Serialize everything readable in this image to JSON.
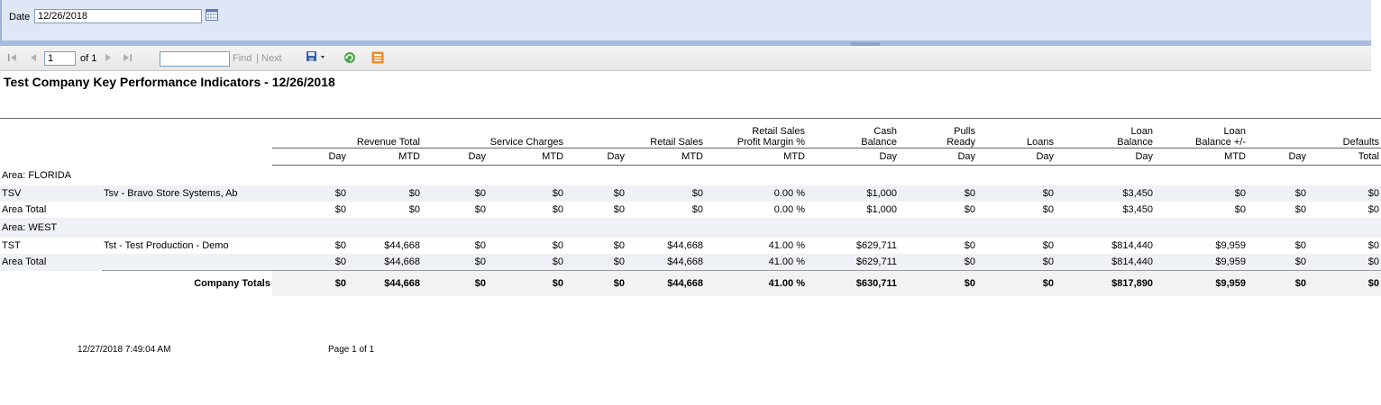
{
  "params": {
    "date_label": "Date",
    "date_value": "12/26/2018"
  },
  "toolbar": {
    "page_value": "1",
    "of_text": "of 1",
    "find_label": "Find",
    "separator": "|",
    "next_label": "Next"
  },
  "report": {
    "title": "Test Company Key Performance Indicators - 12/26/2018",
    "group_headers": [
      "Revenue Total",
      "Service Charges",
      "Retail Sales",
      "Retail Sales",
      "Profit Margin %",
      "Cash",
      "Balance",
      "Pulls",
      "Ready",
      "Loans",
      "Loan",
      "Balance",
      "Loan",
      "Balance +/-",
      "Defaults"
    ],
    "sub_headers": [
      "Day",
      "MTD",
      "Day",
      "MTD",
      "Day",
      "MTD",
      "MTD",
      "Day",
      "Day",
      "Day",
      "Day",
      "MTD",
      "Day",
      "Total"
    ],
    "areas": [
      {
        "area_label": "Area: FLORIDA",
        "store": {
          "code": "TSV",
          "name": "Tsv - Bravo Store Systems, Ab",
          "values": [
            "$0",
            "$0",
            "$0",
            "$0",
            "$0",
            "$0",
            "0.00 %",
            "$1,000",
            "$0",
            "$0",
            "$3,450",
            "$0",
            "$0",
            "$0"
          ]
        },
        "total": {
          "label": "Area Total",
          "values": [
            "$0",
            "$0",
            "$0",
            "$0",
            "$0",
            "$0",
            "0.00 %",
            "$1,000",
            "$0",
            "$0",
            "$3,450",
            "$0",
            "$0",
            "$0"
          ]
        }
      },
      {
        "area_label": "Area: WEST",
        "store": {
          "code": "TST",
          "name": "Tst - Test Production - Demo",
          "values": [
            "$0",
            "$44,668",
            "$0",
            "$0",
            "$0",
            "$44,668",
            "41.00 %",
            "$629,711",
            "$0",
            "$0",
            "$814,440",
            "$9,959",
            "$0",
            "$0"
          ]
        },
        "total": {
          "label": "Area Total",
          "values": [
            "$0",
            "$44,668",
            "$0",
            "$0",
            "$0",
            "$44,668",
            "41.00 %",
            "$629,711",
            "$0",
            "$0",
            "$814,440",
            "$9,959",
            "$0",
            "$0"
          ]
        }
      }
    ],
    "company_totals": {
      "label": "Company Totals",
      "values": [
        "$0",
        "$44,668",
        "$0",
        "$0",
        "$0",
        "$44,668",
        "41.00 %",
        "$630,711",
        "$0",
        "$0",
        "$817,890",
        "$9,959",
        "$0",
        "$0"
      ]
    }
  },
  "footer": {
    "timestamp": "12/27/2018 7:49:04 AM",
    "page_text": "Page 1 of 1"
  }
}
